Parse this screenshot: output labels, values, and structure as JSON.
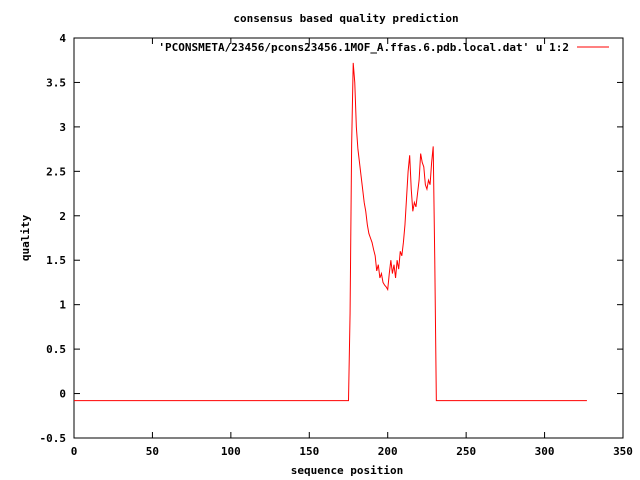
{
  "chart_data": {
    "type": "line",
    "title": "consensus based quality prediction",
    "xlabel": "sequence position",
    "ylabel": "quality",
    "xlim": [
      0,
      350
    ],
    "ylim": [
      -0.5,
      4
    ],
    "xticks": [
      0,
      50,
      100,
      150,
      200,
      250,
      300,
      350
    ],
    "yticks": [
      -0.5,
      0,
      0.5,
      1,
      1.5,
      2,
      2.5,
      3,
      3.5,
      4
    ],
    "ytick_labels": [
      "-0.5",
      "0",
      "0.5",
      "1",
      "1.5",
      "2",
      "2.5",
      "3",
      "3.5",
      "4"
    ],
    "grid": false,
    "legend_position": "top-right",
    "line_color": "#ff0000",
    "series": [
      {
        "name": "'PCONSMETA/23456/pcons23456.1MOF_A.ffas.6.pdb.local.dat' u 1:2",
        "points": [
          [
            0,
            -0.08
          ],
          [
            175,
            -0.08
          ],
          [
            176,
            0.9
          ],
          [
            177,
            2.8
          ],
          [
            178,
            3.72
          ],
          [
            179,
            3.5
          ],
          [
            180,
            3.0
          ],
          [
            181,
            2.75
          ],
          [
            182,
            2.6
          ],
          [
            183,
            2.45
          ],
          [
            184,
            2.3
          ],
          [
            185,
            2.15
          ],
          [
            186,
            2.05
          ],
          [
            187,
            1.9
          ],
          [
            188,
            1.8
          ],
          [
            189,
            1.75
          ],
          [
            190,
            1.7
          ],
          [
            191,
            1.62
          ],
          [
            192,
            1.55
          ],
          [
            193,
            1.38
          ],
          [
            194,
            1.45
          ],
          [
            195,
            1.3
          ],
          [
            196,
            1.35
          ],
          [
            197,
            1.25
          ],
          [
            198,
            1.22
          ],
          [
            199,
            1.2
          ],
          [
            200,
            1.17
          ],
          [
            201,
            1.35
          ],
          [
            202,
            1.5
          ],
          [
            203,
            1.35
          ],
          [
            204,
            1.45
          ],
          [
            205,
            1.3
          ],
          [
            206,
            1.5
          ],
          [
            207,
            1.4
          ],
          [
            208,
            1.6
          ],
          [
            209,
            1.55
          ],
          [
            210,
            1.7
          ],
          [
            211,
            1.9
          ],
          [
            212,
            2.2
          ],
          [
            213,
            2.5
          ],
          [
            214,
            2.68
          ],
          [
            215,
            2.3
          ],
          [
            216,
            2.05
          ],
          [
            217,
            2.15
          ],
          [
            218,
            2.1
          ],
          [
            219,
            2.25
          ],
          [
            220,
            2.4
          ],
          [
            221,
            2.7
          ],
          [
            222,
            2.6
          ],
          [
            223,
            2.55
          ],
          [
            224,
            2.35
          ],
          [
            225,
            2.3
          ],
          [
            226,
            2.4
          ],
          [
            227,
            2.35
          ],
          [
            228,
            2.6
          ],
          [
            229,
            2.78
          ],
          [
            230,
            1.5
          ],
          [
            231,
            -0.08
          ],
          [
            327,
            -0.08
          ]
        ]
      }
    ]
  }
}
